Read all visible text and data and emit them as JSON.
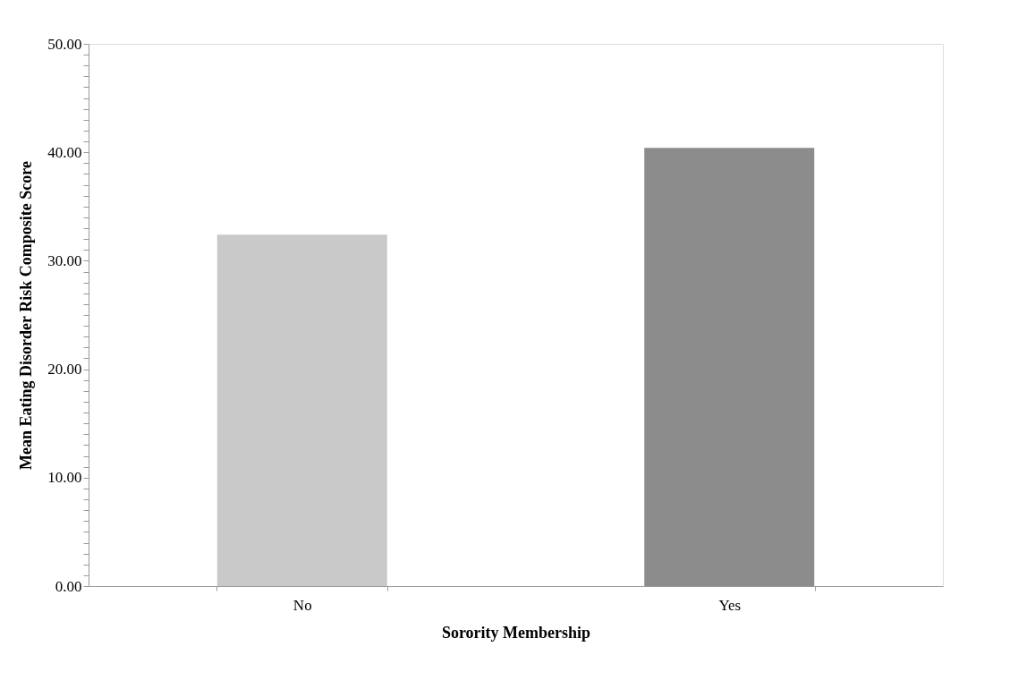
{
  "chart_data": {
    "type": "bar",
    "xlabel": "Sorority Membership",
    "ylabel": "Mean Eating Disorder Risk Composite Score",
    "categories": [
      "No",
      "Yes"
    ],
    "values": [
      32.4,
      40.4
    ],
    "colors": [
      "#c9c9c9",
      "#8c8c8c"
    ],
    "ylim": [
      0,
      50
    ],
    "yticks": [
      {
        "value": 0,
        "label": "0.00"
      },
      {
        "value": 1,
        "label": null
      },
      {
        "value": 2,
        "label": null
      },
      {
        "value": 3,
        "label": null
      },
      {
        "value": 4,
        "label": null
      },
      {
        "value": 5,
        "label": null
      },
      {
        "value": 6,
        "label": null
      },
      {
        "value": 7,
        "label": null
      },
      {
        "value": 8,
        "label": null
      },
      {
        "value": 9,
        "label": null
      },
      {
        "value": 10,
        "label": "10.00"
      },
      {
        "value": 11,
        "label": null
      },
      {
        "value": 12,
        "label": null
      },
      {
        "value": 13,
        "label": null
      },
      {
        "value": 14,
        "label": null
      },
      {
        "value": 15,
        "label": null
      },
      {
        "value": 16,
        "label": null
      },
      {
        "value": 17,
        "label": null
      },
      {
        "value": 18,
        "label": null
      },
      {
        "value": 19,
        "label": null
      },
      {
        "value": 20,
        "label": "20.00"
      },
      {
        "value": 21,
        "label": null
      },
      {
        "value": 22,
        "label": null
      },
      {
        "value": 23,
        "label": null
      },
      {
        "value": 24,
        "label": null
      },
      {
        "value": 25,
        "label": null
      },
      {
        "value": 26,
        "label": null
      },
      {
        "value": 27,
        "label": null
      },
      {
        "value": 28,
        "label": null
      },
      {
        "value": 29,
        "label": null
      },
      {
        "value": 30,
        "label": "30.00"
      },
      {
        "value": 31,
        "label": null
      },
      {
        "value": 32,
        "label": null
      },
      {
        "value": 33,
        "label": null
      },
      {
        "value": 34,
        "label": null
      },
      {
        "value": 35,
        "label": null
      },
      {
        "value": 36,
        "label": null
      },
      {
        "value": 37,
        "label": null
      },
      {
        "value": 38,
        "label": null
      },
      {
        "value": 39,
        "label": null
      },
      {
        "value": 40,
        "label": "40.00"
      },
      {
        "value": 41,
        "label": null
      },
      {
        "value": 42,
        "label": null
      },
      {
        "value": 43,
        "label": null
      },
      {
        "value": 44,
        "label": null
      },
      {
        "value": 45,
        "label": null
      },
      {
        "value": 46,
        "label": null
      },
      {
        "value": 47,
        "label": null
      },
      {
        "value": 48,
        "label": null
      },
      {
        "value": 49,
        "label": null
      },
      {
        "value": 50,
        "label": "50.00"
      }
    ],
    "grid": false
  }
}
